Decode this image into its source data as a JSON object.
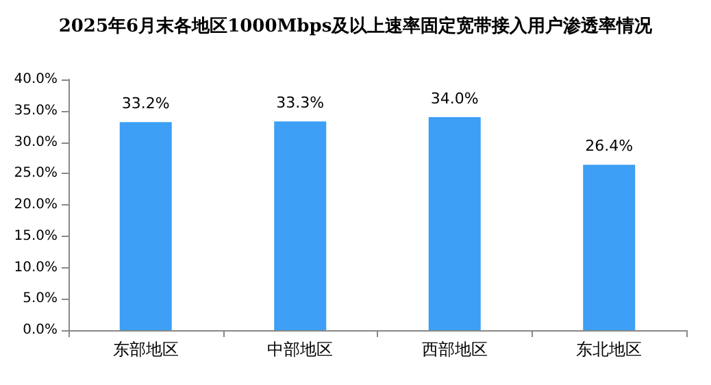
{
  "chart_data": {
    "type": "bar",
    "title": "2025年6月末各地区1000Mbps及以上速率固定宽带接入用户渗透率情况",
    "categories": [
      "东部地区",
      "中部地区",
      "西部地区",
      "东北地区"
    ],
    "values": [
      33.2,
      33.3,
      34.0,
      26.4
    ],
    "value_labels": [
      "33.2%",
      "33.3%",
      "34.0%",
      "26.4%"
    ],
    "color": "#3d9ff5",
    "ylim": [
      0,
      40
    ],
    "yticks": [
      {
        "value": 0,
        "label": "0.0%"
      },
      {
        "value": 5,
        "label": "5.0%"
      },
      {
        "value": 10,
        "label": "10.0%"
      },
      {
        "value": 15,
        "label": "15.0%"
      },
      {
        "value": 20,
        "label": "20.0%"
      },
      {
        "value": 25,
        "label": "25.0%"
      },
      {
        "value": 30,
        "label": "30.0%"
      },
      {
        "value": 35,
        "label": "35.0%"
      },
      {
        "value": 40,
        "label": "40.0%"
      }
    ],
    "grid": false
  }
}
